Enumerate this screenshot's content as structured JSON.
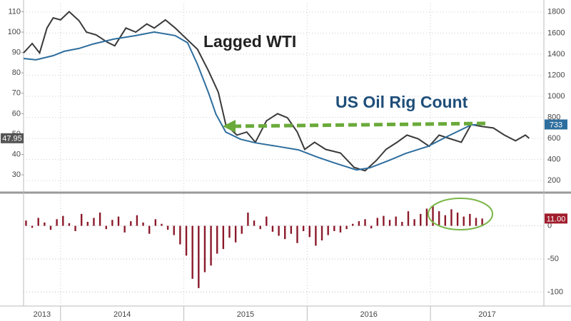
{
  "chart_data": [
    {
      "type": "line",
      "xlim": [
        2013.7,
        2017.92
      ],
      "xticks": [
        2014,
        2015,
        2016,
        2017
      ],
      "ylim": [
        22,
        114
      ],
      "yticks": [
        30,
        40,
        50,
        60,
        70,
        80,
        90,
        100,
        110
      ],
      "y2lim": [
        100,
        1880
      ],
      "y2ticks": [
        200,
        400,
        600,
        800,
        1000,
        1200,
        1400,
        1600,
        1800
      ],
      "grid": true,
      "series": [
        {
          "name": "Lagged WTI",
          "color": "#3a3a3a",
          "x": [
            2013.7,
            2013.77,
            2013.83,
            2013.89,
            2013.94,
            2014.0,
            2014.07,
            2014.15,
            2014.21,
            2014.29,
            2014.38,
            2014.44,
            2014.53,
            2014.61,
            2014.7,
            2014.76,
            2014.85,
            2014.93,
            2015.02,
            2015.11,
            2015.2,
            2015.28,
            2015.34,
            2015.43,
            2015.51,
            2015.58,
            2015.67,
            2015.76,
            2015.84,
            2015.92,
            2015.98,
            2016.06,
            2016.15,
            2016.27,
            2016.38,
            2016.47,
            2016.56,
            2016.64,
            2016.73,
            2016.81,
            2016.9,
            2016.99,
            2017.07,
            2017.16,
            2017.25,
            2017.33,
            2017.42,
            2017.51,
            2017.6,
            2017.69,
            2017.77,
            2017.8
          ],
          "values": [
            89.8,
            94.4,
            89.8,
            102,
            107,
            106,
            110,
            105.6,
            100,
            98.6,
            95,
            93.3,
            102,
            100,
            104,
            102,
            106,
            102,
            96.8,
            91.6,
            81,
            70.5,
            54.7,
            49.5,
            51,
            46,
            56.5,
            60,
            58,
            51,
            42.5,
            46,
            42.5,
            40.7,
            33.7,
            32,
            37,
            42.5,
            46,
            49.5,
            47.7,
            44,
            49.5,
            47.7,
            46,
            54.7,
            53.7,
            53,
            49.5,
            46.7,
            49.5,
            47.95
          ]
        },
        {
          "name": "US Oil Rig Count",
          "color": "#2e6e9e",
          "axis": "y2",
          "x": [
            2013.7,
            2013.8,
            2013.94,
            2014.03,
            2014.15,
            2014.26,
            2014.43,
            2014.61,
            2014.76,
            2014.93,
            2015.03,
            2015.11,
            2015.2,
            2015.26,
            2015.34,
            2015.46,
            2015.58,
            2015.76,
            2015.93,
            2016.08,
            2016.22,
            2016.4,
            2016.51,
            2016.66,
            2016.8,
            2016.98,
            2017.15,
            2017.33,
            2017.42
          ],
          "values": [
            1359,
            1346,
            1386,
            1427,
            1454,
            1495,
            1542,
            1576,
            1610,
            1576,
            1508,
            1305,
            1034,
            831,
            661,
            593,
            559,
            525,
            492,
            424,
            369,
            302,
            322,
            390,
            458,
            525,
            627,
            729,
            733
          ]
        }
      ]
    },
    {
      "type": "bar",
      "color": "#8b1a2b",
      "xlim": [
        2013.7,
        2017.92
      ],
      "xticks": [
        2013,
        2014,
        2015,
        2016,
        2017
      ],
      "ylim": [
        -120,
        48
      ],
      "yticks": [
        0,
        -50,
        -100
      ],
      "grid": true,
      "current_label": "11.00",
      "x": [
        2013.72,
        2013.77,
        2013.82,
        2013.87,
        2013.92,
        2013.97,
        2014.02,
        2014.07,
        2014.12,
        2014.17,
        2014.22,
        2014.27,
        2014.32,
        2014.37,
        2014.42,
        2014.47,
        2014.52,
        2014.57,
        2014.62,
        2014.67,
        2014.72,
        2014.77,
        2014.82,
        2014.87,
        2014.92,
        2014.97,
        2015.02,
        2015.07,
        2015.12,
        2015.17,
        2015.22,
        2015.27,
        2015.32,
        2015.37,
        2015.42,
        2015.47,
        2015.52,
        2015.57,
        2015.62,
        2015.67,
        2015.72,
        2015.77,
        2015.82,
        2015.87,
        2015.92,
        2015.97,
        2016.02,
        2016.07,
        2016.12,
        2016.17,
        2016.22,
        2016.27,
        2016.32,
        2016.37,
        2016.42,
        2016.47,
        2016.52,
        2016.57,
        2016.62,
        2016.67,
        2016.72,
        2016.77,
        2016.82,
        2016.87,
        2016.92,
        2016.97,
        2017.02,
        2017.07,
        2017.12,
        2017.17,
        2017.22,
        2017.27,
        2017.32,
        2017.37,
        2017.42
      ],
      "values": [
        8,
        -3,
        12,
        5,
        -6,
        10,
        15,
        4,
        -8,
        18,
        6,
        12,
        20,
        -5,
        9,
        14,
        -10,
        7,
        16,
        5,
        -12,
        10,
        3,
        -6,
        -14,
        -28,
        -45,
        -80,
        -94,
        -70,
        -60,
        -42,
        -35,
        -18,
        -25,
        -12,
        20,
        8,
        -5,
        14,
        -9,
        -15,
        -20,
        -12,
        -26,
        -8,
        -17,
        -30,
        -22,
        -14,
        -8,
        -10,
        -5,
        3,
        7,
        10,
        -4,
        12,
        15,
        9,
        14,
        6,
        22,
        10,
        18,
        26,
        30,
        22,
        16,
        25,
        20,
        14,
        18,
        12,
        11
      ]
    }
  ]
}
